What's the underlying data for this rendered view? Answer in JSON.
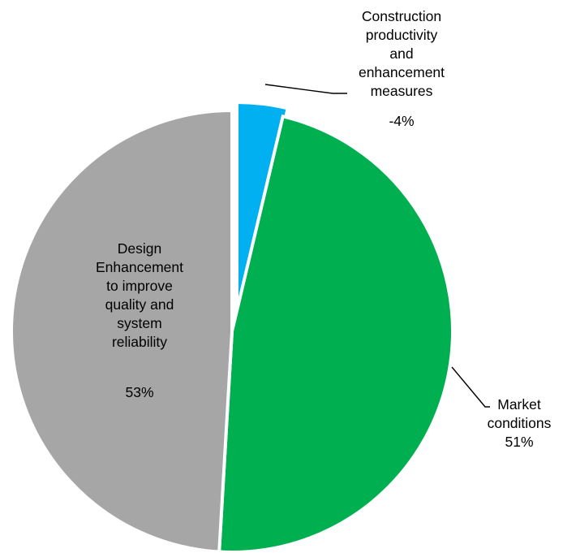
{
  "chart_data": {
    "type": "pie",
    "title": "",
    "series": [
      {
        "values": [
          4,
          51,
          53
        ],
        "display_labels": [
          "-4%",
          "51%",
          "53%"
        ]
      }
    ],
    "categories": [
      "Construction productivity and enhancement measures",
      "Market conditions",
      "Design Enhancement to improve quality and system reliability"
    ],
    "slices": [
      {
        "label_lines": [
          "Construction",
          "productivity",
          "and",
          "enhancement",
          "measures"
        ],
        "value": 4,
        "value_label": "-4%",
        "color": "#00B0F0",
        "exploded": true
      },
      {
        "label_lines": [
          "Market",
          "conditions"
        ],
        "value": 51,
        "value_label": "51%",
        "color": "#00B050",
        "exploded": false
      },
      {
        "label_lines": [
          "Design",
          "Enhancement",
          "to improve",
          "quality and",
          "system",
          "reliability"
        ],
        "value": 53,
        "value_label": "53%",
        "color": "#A6A6A6",
        "exploded": false
      }
    ],
    "start_angle": "12 o'clock",
    "direction": "clockwise",
    "legend": "none",
    "slice_border_color": "#FFFFFF"
  }
}
